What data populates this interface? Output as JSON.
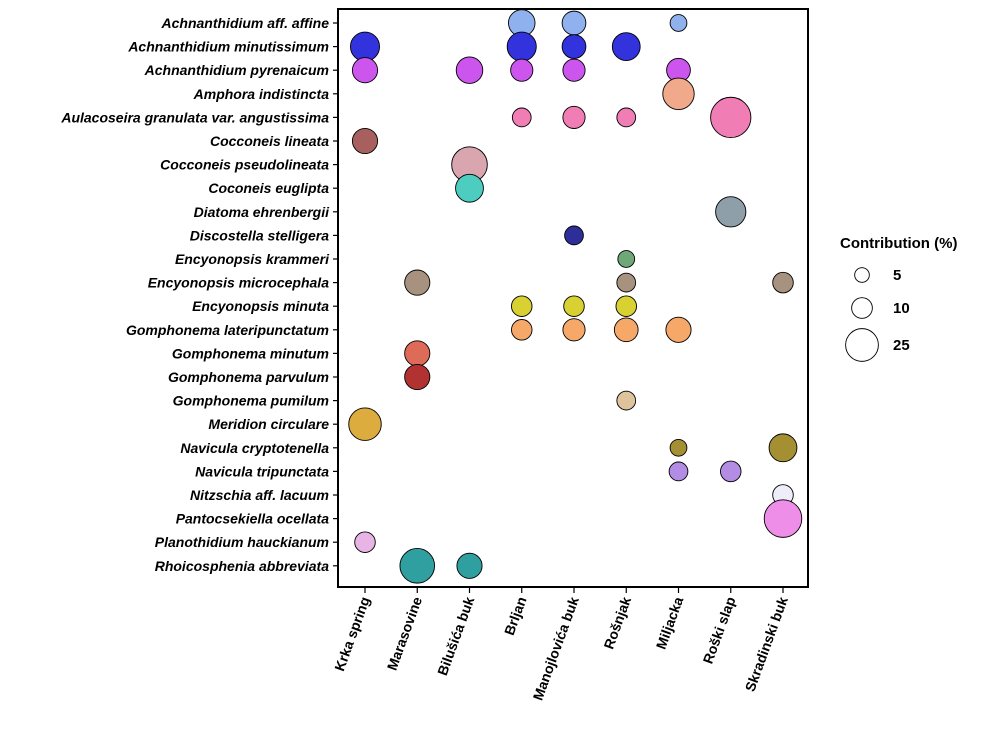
{
  "chart_data": {
    "type": "bubble",
    "species": [
      "Achnanthidium aff. affine",
      "Achnanthidium minutissimum",
      "Achnanthidium pyrenaicum",
      "Amphora indistincta",
      "Aulacoseira granulata var. angustissima",
      "Cocconeis lineata",
      "Cocconeis pseudolineata",
      "Coconeis euglipta",
      "Diatoma ehrenbergii",
      "Discostella stelligera",
      "Encyonopsis krammeri",
      "Encyonopsis microcephala",
      "Encyonopsis minuta",
      "Gomphonema lateripunctatum",
      "Gomphonema minutum",
      "Gomphonema parvulum",
      "Gomphonema pumilum",
      "Meridion circulare",
      "Navicula cryptotenella",
      "Navicula tripunctata",
      "Nitzschia aff. lacuum",
      "Pantocsekiella ocellata",
      "Planothidium hauckianum",
      "Rhoicosphenia abbreviata"
    ],
    "sites": [
      "Krka spring",
      "Marasovine",
      "Bilušića buk",
      "Brljan",
      "Manojlovića buk",
      "Rošnjak",
      "Miljacka",
      "Roški slap",
      "Skradinski buk"
    ],
    "species_colors": {
      "Achnanthidium aff. affine": "#8fb2ee",
      "Achnanthidium minutissimum": "#3333dd",
      "Achnanthidium pyrenaicum": "#cc55ee",
      "Amphora indistincta": "#f0a98a",
      "Aulacoseira granulata var. angustissima": "#f07eb4",
      "Cocconeis lineata": "#a8605e",
      "Cocconeis pseudolineata": "#d9a5ae",
      "Coconeis euglipta": "#4ccdbf",
      "Diatoma ehrenbergii": "#8f9fa9",
      "Discostella stelligera": "#2e2e99",
      "Encyonopsis krammeri": "#6fa878",
      "Encyonopsis microcephala": "#a7917f",
      "Encyonopsis minuta": "#d9d032",
      "Gomphonema lateripunctatum": "#f5a868",
      "Gomphonema minutum": "#de6b58",
      "Gomphonema parvulum": "#b23232",
      "Gomphonema pumilum": "#dfc39d",
      "Meridion circulare": "#dcac3e",
      "Navicula cryptotenella": "#a48f32",
      "Navicula tripunctata": "#b28de3",
      "Nitzschia aff. lacuum": "#eeeefa",
      "Pantocsekiella ocellata": "#ee8ee8",
      "Planothidium hauckianum": "#e8b4e6",
      "Rhoicosphenia abbreviata": "#2f9fa0"
    },
    "points": [
      {
        "species": "Achnanthidium aff. affine",
        "site": "Brljan",
        "value": 10
      },
      {
        "species": "Achnanthidium aff. affine",
        "site": "Manojlovića buk",
        "value": 8
      },
      {
        "species": "Achnanthidium aff. affine",
        "site": "Miljacka",
        "value": 4
      },
      {
        "species": "Achnanthidium minutissimum",
        "site": "Krka spring",
        "value": 12
      },
      {
        "species": "Achnanthidium minutissimum",
        "site": "Brljan",
        "value": 12
      },
      {
        "species": "Achnanthidium minutissimum",
        "site": "Manojlovića buk",
        "value": 8
      },
      {
        "species": "Achnanthidium minutissimum",
        "site": "Rošnjak",
        "value": 11
      },
      {
        "species": "Achnanthidium pyrenaicum",
        "site": "Krka spring",
        "value": 9
      },
      {
        "species": "Achnanthidium pyrenaicum",
        "site": "Bilušića buk",
        "value": 10
      },
      {
        "species": "Achnanthidium pyrenaicum",
        "site": "Brljan",
        "value": 7
      },
      {
        "species": "Achnanthidium pyrenaicum",
        "site": "Manojlovića buk",
        "value": 7
      },
      {
        "species": "Achnanthidium pyrenaicum",
        "site": "Miljacka",
        "value": 8
      },
      {
        "species": "Amphora indistincta",
        "site": "Miljacka",
        "value": 14
      },
      {
        "species": "Aulacoseira granulata var. angustissima",
        "site": "Brljan",
        "value": 5
      },
      {
        "species": "Aulacoseira granulata var. angustissima",
        "site": "Manojlovića buk",
        "value": 7
      },
      {
        "species": "Aulacoseira granulata var. angustissima",
        "site": "Rošnjak",
        "value": 5
      },
      {
        "species": "Aulacoseira granulata var. angustissima",
        "site": "Roški slap",
        "value": 23
      },
      {
        "species": "Cocconeis lineata",
        "site": "Krka spring",
        "value": 9
      },
      {
        "species": "Cocconeis pseudolineata",
        "site": "Bilušića buk",
        "value": 18
      },
      {
        "species": "Coconeis euglipta",
        "site": "Bilušića buk",
        "value": 11
      },
      {
        "species": "Diatoma ehrenbergii",
        "site": "Roški slap",
        "value": 13
      },
      {
        "species": "Discostella stelligera",
        "site": "Manojlovića buk",
        "value": 5
      },
      {
        "species": "Encyonopsis krammeri",
        "site": "Rošnjak",
        "value": 4
      },
      {
        "species": "Encyonopsis microcephala",
        "site": "Marasovine",
        "value": 9
      },
      {
        "species": "Encyonopsis microcephala",
        "site": "Rošnjak",
        "value": 5
      },
      {
        "species": "Encyonopsis microcephala",
        "site": "Skradinski buk",
        "value": 6
      },
      {
        "species": "Encyonopsis minuta",
        "site": "Brljan",
        "value": 6
      },
      {
        "species": "Encyonopsis minuta",
        "site": "Manojlovića buk",
        "value": 6
      },
      {
        "species": "Encyonopsis minuta",
        "site": "Rošnjak",
        "value": 6
      },
      {
        "species": "Gomphonema lateripunctatum",
        "site": "Brljan",
        "value": 6
      },
      {
        "species": "Gomphonema lateripunctatum",
        "site": "Manojlovića buk",
        "value": 7
      },
      {
        "species": "Gomphonema lateripunctatum",
        "site": "Rošnjak",
        "value": 8
      },
      {
        "species": "Gomphonema lateripunctatum",
        "site": "Miljacka",
        "value": 9
      },
      {
        "species": "Gomphonema minutum",
        "site": "Marasovine",
        "value": 9
      },
      {
        "species": "Gomphonema parvulum",
        "site": "Marasovine",
        "value": 9
      },
      {
        "species": "Gomphonema pumilum",
        "site": "Rošnjak",
        "value": 5
      },
      {
        "species": "Meridion circulare",
        "site": "Krka spring",
        "value": 15
      },
      {
        "species": "Navicula cryptotenella",
        "site": "Miljacka",
        "value": 4
      },
      {
        "species": "Navicula cryptotenella",
        "site": "Skradinski buk",
        "value": 11
      },
      {
        "species": "Navicula tripunctata",
        "site": "Miljacka",
        "value": 5
      },
      {
        "species": "Navicula tripunctata",
        "site": "Roški slap",
        "value": 6
      },
      {
        "species": "Nitzschia aff. lacuum",
        "site": "Skradinski buk",
        "value": 6
      },
      {
        "species": "Pantocsekiella ocellata",
        "site": "Skradinski buk",
        "value": 20
      },
      {
        "species": "Planothidium hauckianum",
        "site": "Krka spring",
        "value": 6
      },
      {
        "species": "Rhoicosphenia abbreviata",
        "site": "Marasovine",
        "value": 17
      },
      {
        "species": "Rhoicosphenia abbreviata",
        "site": "Bilušića buk",
        "value": 9
      }
    ],
    "legend": {
      "title": "Contribution (%)",
      "entries": [
        {
          "label": "5",
          "value": 5
        },
        {
          "label": "10",
          "value": 10
        },
        {
          "label": "25",
          "value": 25
        }
      ],
      "placement": "right"
    },
    "grid": false
  }
}
